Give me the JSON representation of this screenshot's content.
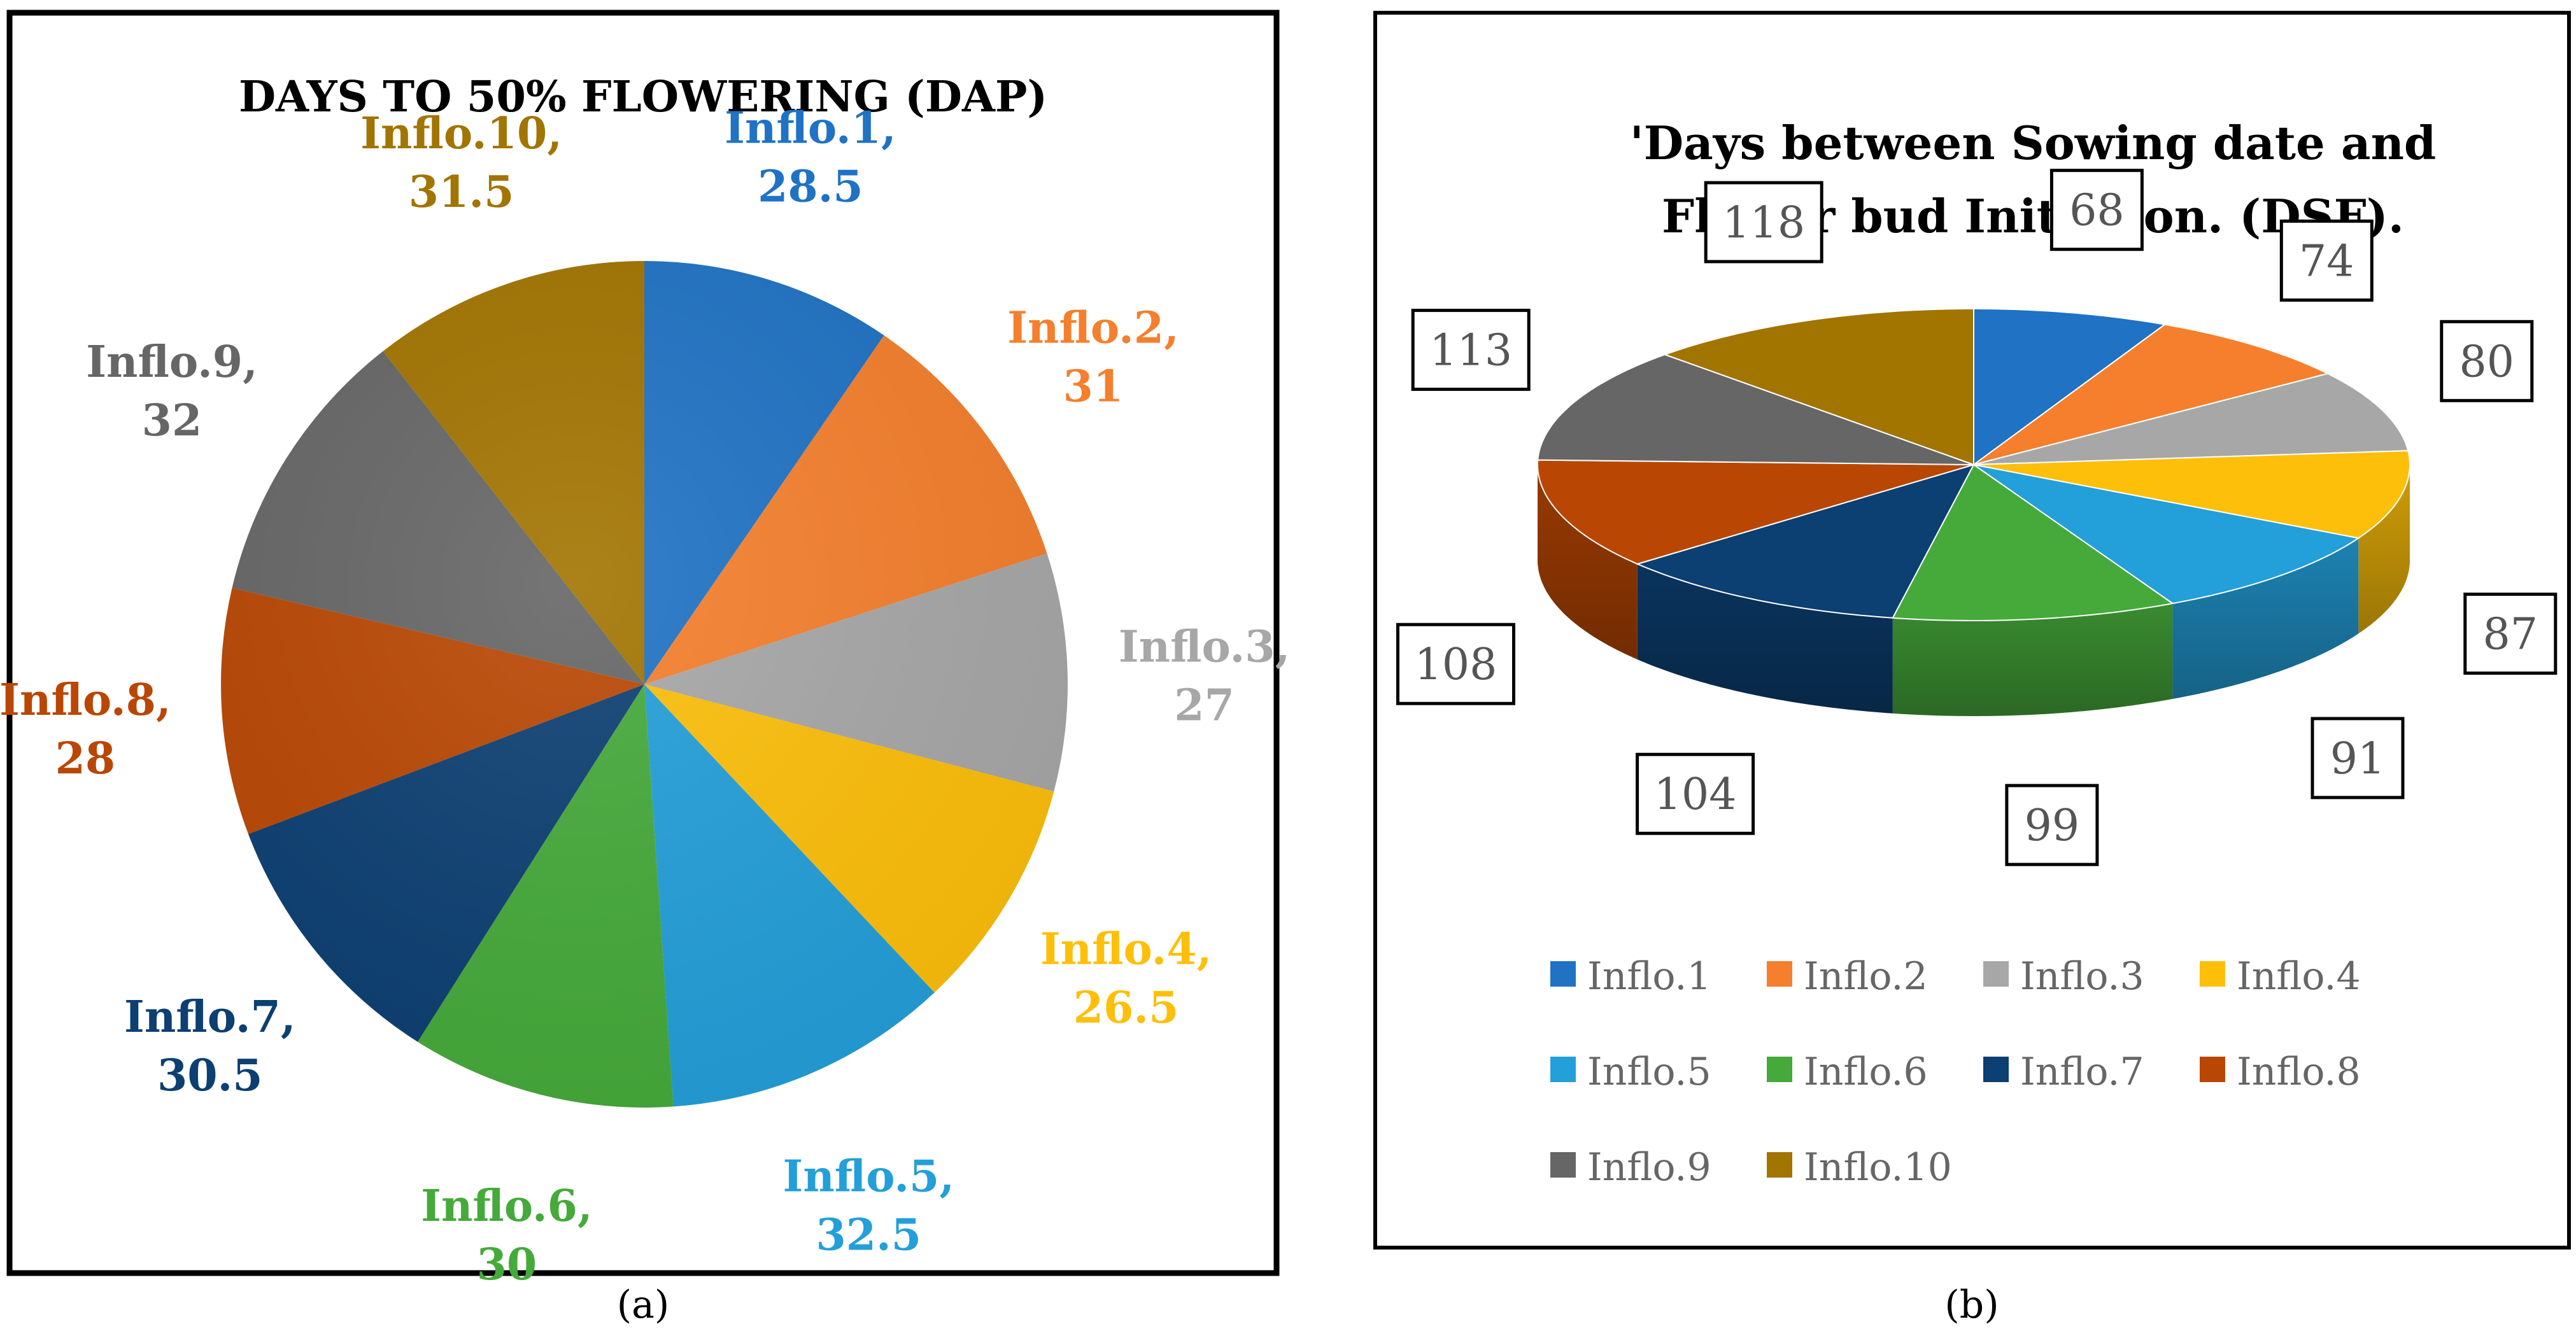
{
  "chart_data": [
    {
      "type": "pie",
      "panel_label": "(a)",
      "title": "DAYS TO 50% FLOWERING (DAP)",
      "categories": [
        "Inflo.1",
        "Inflo.2",
        "Inflo.3",
        "Inflo.4",
        "Inflo.5",
        "Inflo.6",
        "Inflo.7",
        "Inflo.8",
        "Inflo.9",
        "Inflo.10"
      ],
      "values": [
        28.5,
        31,
        27,
        26.5,
        32.5,
        30,
        30.5,
        28,
        32,
        31.5
      ],
      "data_labels": [
        "Inflo.1,",
        "Inflo.2,",
        "Inflo.3,",
        "Inflo.4,",
        "Inflo.5,",
        "Inflo.6,",
        "Inflo.7,",
        "Inflo.8,",
        "Inflo.9,",
        "Inflo.10,"
      ],
      "value_labels": [
        "28.5",
        "31",
        "27",
        "26.5",
        "32.5",
        "30",
        "30.5",
        "28",
        "32",
        "31.5"
      ],
      "colors": [
        "#1f72c4",
        "#f57f2c",
        "#a7a7a7",
        "#fdbf0a",
        "#239fd9",
        "#45aa3a",
        "#0c3f72",
        "#b94703",
        "#666666",
        "#a27400"
      ]
    },
    {
      "type": "pie",
      "variant": "3d",
      "panel_label": "(b)",
      "title": [
        "'Days between Sowing date and",
        "Flower  bud Initiation. (DSF)."
      ],
      "categories": [
        "Inflo.1",
        "Inflo.2",
        "Inflo.3",
        "Inflo.4",
        "Inflo.5",
        "Inflo.6",
        "Inflo.7",
        "Inflo.8",
        "Inflo.9",
        "Inflo.10"
      ],
      "values": [
        68,
        74,
        80,
        87,
        91,
        99,
        104,
        108,
        113,
        118
      ],
      "value_labels": [
        "68",
        "74",
        "80",
        "87",
        "91",
        "99",
        "104",
        "108",
        "113",
        "118"
      ],
      "legend": [
        "Inflo.1",
        "Inflo.2",
        "Inflo.3",
        "Inflo.4",
        "Inflo.5",
        "Inflo.6",
        "Inflo.7",
        "Inflo.8",
        "Inflo.9",
        "Inflo.10"
      ],
      "legend_position": "bottom",
      "colors": [
        "#1f72c4",
        "#f57f2c",
        "#a7a7a7",
        "#fdbf0a",
        "#239fd9",
        "#45aa3a",
        "#0c3f72",
        "#b94703",
        "#666666",
        "#a27400"
      ]
    }
  ]
}
